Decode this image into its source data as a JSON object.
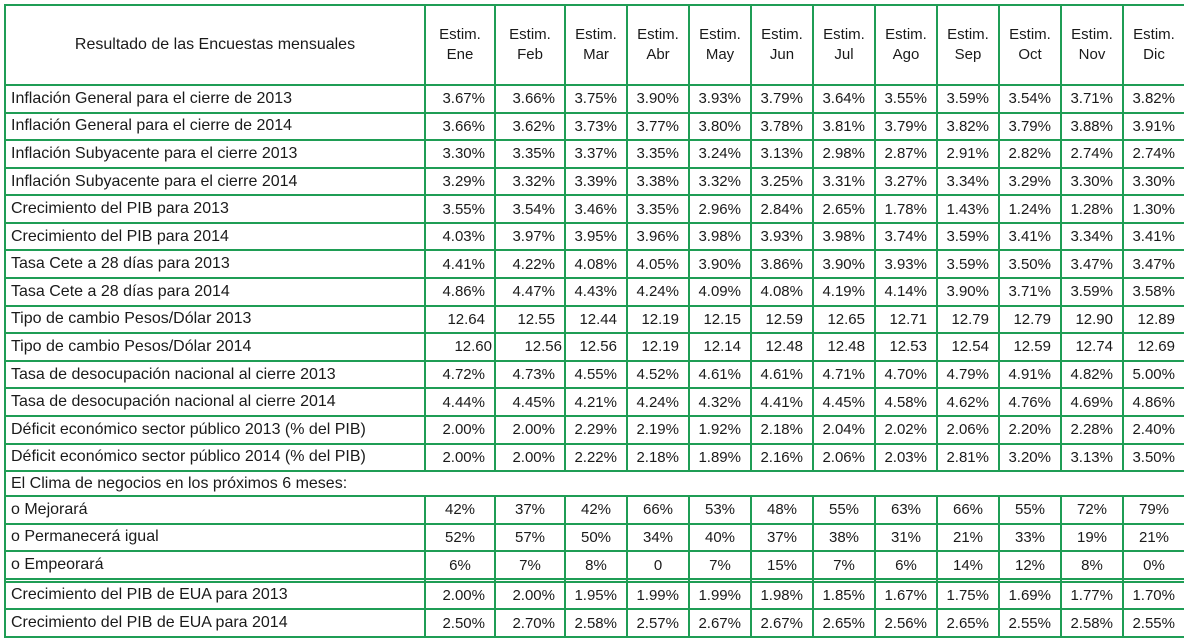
{
  "table": {
    "title": "Resultado de las Encuestas mensuales",
    "estim_label": "Estim.",
    "months": [
      "Ene",
      "Feb",
      "Mar",
      "Abr",
      "May",
      "Jun",
      "Jul",
      "Ago",
      "Sep",
      "Oct",
      "Nov",
      "Dic"
    ],
    "border_color": "#1F9D55",
    "text_color": "#1a1a1a",
    "rows": [
      {
        "kind": "data",
        "label": "Inflación General para el cierre de 2013",
        "values": [
          "3.67%",
          "3.66%",
          "3.75%",
          "3.90%",
          "3.93%",
          "3.79%",
          "3.64%",
          "3.55%",
          "3.59%",
          "3.54%",
          "3.71%",
          "3.82%"
        ]
      },
      {
        "kind": "data",
        "label": "Inflación General para el cierre de 2014",
        "values": [
          "3.66%",
          "3.62%",
          "3.73%",
          "3.77%",
          "3.80%",
          "3.78%",
          "3.81%",
          "3.79%",
          "3.82%",
          "3.79%",
          "3.88%",
          "3.91%"
        ]
      },
      {
        "kind": "data",
        "label": "Inflación Subyacente para el cierre 2013",
        "values": [
          "3.30%",
          "3.35%",
          "3.37%",
          "3.35%",
          "3.24%",
          "3.13%",
          "2.98%",
          "2.87%",
          "2.91%",
          "2.82%",
          "2.74%",
          "2.74%"
        ]
      },
      {
        "kind": "data",
        "label": "Inflación Subyacente para el cierre 2014",
        "values": [
          "3.29%",
          "3.32%",
          "3.39%",
          "3.38%",
          "3.32%",
          "3.25%",
          "3.31%",
          "3.27%",
          "3.34%",
          "3.29%",
          "3.30%",
          "3.30%"
        ]
      },
      {
        "kind": "data",
        "label": "Crecimiento del PIB para 2013",
        "values": [
          "3.55%",
          "3.54%",
          "3.46%",
          "3.35%",
          "2.96%",
          "2.84%",
          "2.65%",
          "1.78%",
          "1.43%",
          "1.24%",
          "1.28%",
          "1.30%"
        ]
      },
      {
        "kind": "data",
        "label": "Crecimiento del PIB para 2014",
        "values": [
          "4.03%",
          "3.97%",
          "3.95%",
          "3.96%",
          "3.98%",
          "3.93%",
          "3.98%",
          "3.74%",
          "3.59%",
          "3.41%",
          "3.34%",
          "3.41%"
        ]
      },
      {
        "kind": "data",
        "label": "Tasa Cete a 28 días para 2013",
        "values": [
          "4.41%",
          "4.22%",
          "4.08%",
          "4.05%",
          "3.90%",
          "3.86%",
          "3.90%",
          "3.93%",
          "3.59%",
          "3.50%",
          "3.47%",
          "3.47%"
        ]
      },
      {
        "kind": "data",
        "label": "Tasa Cete a 28 días para 2014",
        "values": [
          "4.86%",
          "4.47%",
          "4.43%",
          "4.24%",
          "4.09%",
          "4.08%",
          "4.19%",
          "4.14%",
          "3.90%",
          "3.71%",
          "3.59%",
          "3.58%"
        ]
      },
      {
        "kind": "data",
        "label": "Tipo de cambio Pesos/Dólar 2013",
        "values": [
          "12.64",
          "12.55",
          "12.44",
          "12.19",
          "12.15",
          "12.59",
          "12.65",
          "12.71",
          "12.79",
          "12.79",
          "12.90",
          "12.89"
        ]
      },
      {
        "kind": "data",
        "label": "Tipo de cambio Pesos/Dólar 2014",
        "values": [
          "12.60",
          "12.56",
          "12.56",
          "12.19",
          "12.14",
          "12.48",
          "12.48",
          "12.53",
          "12.54",
          "12.59",
          "12.74",
          "12.69"
        ]
      },
      {
        "kind": "data",
        "label": "Tasa de desocupación nacional al cierre 2013",
        "values": [
          "4.72%",
          "4.73%",
          "4.55%",
          "4.52%",
          "4.61%",
          "4.61%",
          "4.71%",
          "4.70%",
          "4.79%",
          "4.91%",
          "4.82%",
          "5.00%"
        ]
      },
      {
        "kind": "data",
        "label": "Tasa de desocupación nacional al cierre 2014",
        "values": [
          "4.44%",
          "4.45%",
          "4.21%",
          "4.24%",
          "4.32%",
          "4.41%",
          "4.45%",
          "4.58%",
          "4.62%",
          "4.76%",
          "4.69%",
          "4.86%"
        ]
      },
      {
        "kind": "data",
        "label": "Déficit económico sector público 2013 (% del PIB)",
        "values": [
          "2.00%",
          "2.00%",
          "2.29%",
          "2.19%",
          "1.92%",
          "2.18%",
          "2.04%",
          "2.02%",
          "2.06%",
          "2.20%",
          "2.28%",
          "2.40%"
        ]
      },
      {
        "kind": "data",
        "label": "Déficit económico sector público 2014 (% del PIB)",
        "values": [
          "2.00%",
          "2.00%",
          "2.22%",
          "2.18%",
          "1.89%",
          "2.16%",
          "2.06%",
          "2.03%",
          "2.81%",
          "3.20%",
          "3.13%",
          "3.50%"
        ]
      },
      {
        "kind": "section",
        "label": "El Clima de negocios en los próximos 6 meses:"
      },
      {
        "kind": "data",
        "align": "center",
        "label": "o Mejorará",
        "values": [
          "42%",
          "37%",
          "42%",
          "66%",
          "53%",
          "48%",
          "55%",
          "63%",
          "66%",
          "55%",
          "72%",
          "79%"
        ]
      },
      {
        "kind": "data",
        "align": "center",
        "label": "o Permanecerá igual",
        "values": [
          "52%",
          "57%",
          "50%",
          "34%",
          "40%",
          "37%",
          "38%",
          "31%",
          "21%",
          "33%",
          "19%",
          "21%"
        ]
      },
      {
        "kind": "data",
        "align": "center",
        "label": "o Empeorará",
        "values": [
          "6%",
          "7%",
          "8%",
          "0",
          "7%",
          "15%",
          "7%",
          "6%",
          "14%",
          "12%",
          "8%",
          "0%"
        ]
      },
      {
        "kind": "empty",
        "label": "",
        "values": [
          "",
          "",
          "",
          "",
          "",
          "",
          "",
          "",
          "",
          "",
          "",
          ""
        ]
      },
      {
        "kind": "data",
        "label": "Crecimiento del PIB de EUA para 2013",
        "values": [
          "2.00%",
          "2.00%",
          "1.95%",
          "1.99%",
          "1.99%",
          "1.98%",
          "1.85%",
          "1.67%",
          "1.75%",
          "1.69%",
          "1.77%",
          "1.70%"
        ]
      },
      {
        "kind": "data",
        "label": "Crecimiento del PIB de EUA para 2014",
        "values": [
          "2.50%",
          "2.70%",
          "2.58%",
          "2.57%",
          "2.67%",
          "2.67%",
          "2.65%",
          "2.56%",
          "2.65%",
          "2.55%",
          "2.58%",
          "2.55%"
        ]
      }
    ]
  }
}
